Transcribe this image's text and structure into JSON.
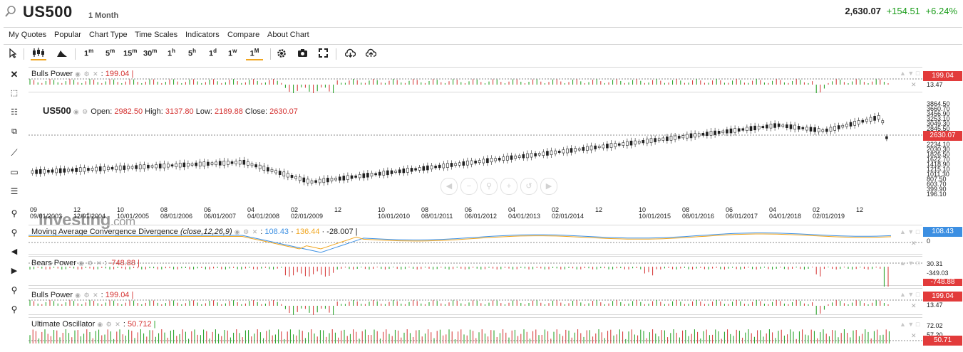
{
  "header": {
    "symbol": "US500",
    "period": "1 Month",
    "price": "2,630.07",
    "change": "+154.51",
    "change_pct": "+6.24%"
  },
  "menu": [
    "My Quotes",
    "Popular",
    "Chart Type",
    "Time Scales",
    "Indicators",
    "Compare",
    "About Chart"
  ],
  "toolbar": {
    "timescales": [
      {
        "n": "1",
        "u": "m"
      },
      {
        "n": "5",
        "u": "m"
      },
      {
        "n": "15",
        "u": "m"
      },
      {
        "n": "30",
        "u": "m"
      },
      {
        "n": "1",
        "u": "h"
      },
      {
        "n": "5",
        "u": "h"
      },
      {
        "n": "1",
        "u": "d"
      },
      {
        "n": "1",
        "u": "w"
      },
      {
        "n": "1",
        "u": "M"
      }
    ],
    "selected_timescale": "1M"
  },
  "panes": {
    "bulls_top": {
      "title": "Bulls Power",
      "value": "199.04",
      "tag": "199.04",
      "axis": [
        "13.47"
      ]
    },
    "main": {
      "title": "US500",
      "open_label": "Open:",
      "open": "2982.50",
      "high_label": "High:",
      "high": "3137.80",
      "low_label": "Low:",
      "low": "2189.88",
      "close_label": "Close:",
      "close": "2630.07",
      "tag": "2630.07",
      "axis": [
        "3864.50",
        "3660.70",
        "3456.90",
        "3253.10",
        "3049.30",
        "2845.50",
        "2234.10",
        "2030.30",
        "1826.50",
        "1622.70",
        "1418.90",
        "1215.10",
        "1011.30",
        "807.50",
        "603.70",
        "399.90",
        "196.10"
      ],
      "xticks_top": [
        "09",
        "12",
        "10",
        "08",
        "06",
        "04",
        "02",
        "12",
        "10",
        "08",
        "06",
        "04",
        "02",
        "12",
        "10",
        "08",
        "06",
        "04",
        "02",
        "12"
      ],
      "xticks_bottom": [
        "09/01/2003",
        "12/01/2004",
        "10/01/2005",
        "08/01/2006",
        "06/01/2007",
        "04/01/2008",
        "02/01/2009",
        "",
        "10/01/2010",
        "08/01/2011",
        "06/01/2012",
        "04/01/2013",
        "02/01/2014",
        "",
        "10/01/2015",
        "08/01/2016",
        "06/01/2017",
        "04/01/2018",
        "02/01/2019",
        ""
      ]
    },
    "macd": {
      "title": "Moving Average Convergence Divergence",
      "params": "(close,12,26,9)",
      "v1": "108.43",
      "v2": "136.44",
      "v3": "-28.007",
      "tag": "108.43",
      "axis": [
        "0"
      ]
    },
    "bears": {
      "title": "Bears Power",
      "value": "-748.88",
      "tag": "-748.88",
      "axis": [
        "30.31",
        "-349.03"
      ]
    },
    "bulls_bottom": {
      "title": "Bulls Power",
      "value": "199.04",
      "tag": "199.04",
      "axis": [
        "13.47"
      ]
    },
    "ultimate": {
      "title": "Ultimate Oscillator",
      "value": "50.712",
      "tag": "50.71",
      "axis": [
        "72.02",
        "57.20"
      ]
    }
  },
  "logo": {
    "brand": "Investing",
    "suffix": ".com"
  },
  "colors": {
    "up": "#1a9c1a",
    "down": "#d4302f",
    "accent": "#f0a51e",
    "macd": "#3c8fe2",
    "signal": "#f0a51e"
  }
}
